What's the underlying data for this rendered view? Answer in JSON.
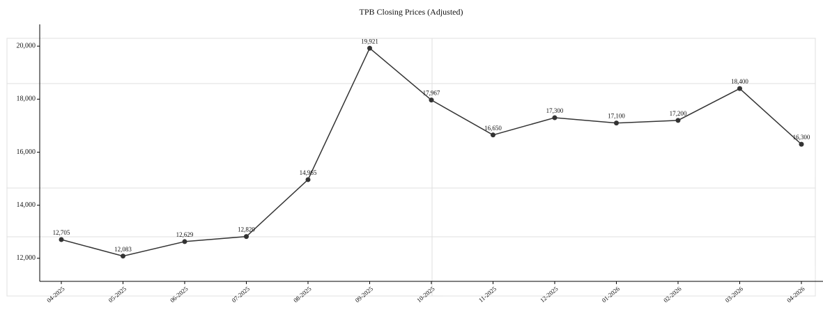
{
  "chart_data": {
    "type": "line",
    "title": "TPB Closing Prices (Adjusted)",
    "categories": [
      "04-2025",
      "05-2025",
      "06-2025",
      "07-2025",
      "08-2025",
      "09-2025",
      "10-2025",
      "11-2025",
      "12-2025",
      "01-2026",
      "02-2026",
      "03-2026",
      "04-2026"
    ],
    "series": [
      {
        "name": "TPB",
        "color": "#333333",
        "values": [
          12705,
          12083,
          12629,
          12820,
          14965,
          19921,
          17967,
          16650,
          17300,
          17100,
          17200,
          18400,
          16300
        ],
        "value_labels": [
          "12,705",
          "12,083",
          "12,629",
          "12,820",
          "14,965",
          "19,921",
          "17,967",
          "16,650",
          "17,300",
          "17,100",
          "17,200",
          "18,400",
          "16,300"
        ]
      }
    ],
    "ylim": [
      11130,
      20820
    ],
    "yticks": [
      {
        "value": 12000,
        "label": "12,000"
      },
      {
        "value": 14000,
        "label": "14,000"
      },
      {
        "value": 16000,
        "label": "16,000"
      },
      {
        "value": 18000,
        "label": "18,000"
      },
      {
        "value": 20000,
        "label": "20,000"
      }
    ],
    "grid": false
  }
}
